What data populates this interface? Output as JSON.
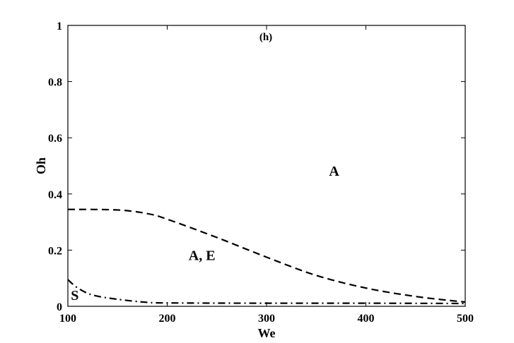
{
  "chart_data": {
    "type": "line",
    "title": "(h)",
    "xlabel": "We",
    "ylabel": "Oh",
    "xlim": [
      100,
      500
    ],
    "ylim": [
      0,
      1
    ],
    "xticks": [
      100,
      200,
      300,
      400,
      500
    ],
    "yticks": [
      0,
      0.2,
      0.4,
      0.6,
      0.8,
      1
    ],
    "xtick_labels": [
      "100",
      "200",
      "300",
      "400",
      "500"
    ],
    "ytick_labels": [
      "0",
      "0.2",
      "0.4",
      "0.6",
      "0.8",
      "1"
    ],
    "grid": false,
    "series": [
      {
        "style": "dashed",
        "x": [
          100,
          150,
          180,
          200,
          250,
          300,
          350,
          400,
          450,
          500
        ],
        "y": [
          0.345,
          0.343,
          0.33,
          0.31,
          0.245,
          0.175,
          0.11,
          0.065,
          0.035,
          0.015
        ]
      },
      {
        "style": "dash-dot",
        "x": [
          100,
          110,
          125,
          150,
          180,
          200,
          300,
          400,
          500
        ],
        "y": [
          0.095,
          0.065,
          0.04,
          0.025,
          0.014,
          0.012,
          0.011,
          0.011,
          0.01
        ]
      }
    ],
    "annotations": [
      {
        "text": "A",
        "x": 368,
        "y": 0.465
      },
      {
        "text": "A, E",
        "x": 235,
        "y": 0.165
      },
      {
        "text": "S",
        "x": 103,
        "y": 0.022
      }
    ]
  }
}
